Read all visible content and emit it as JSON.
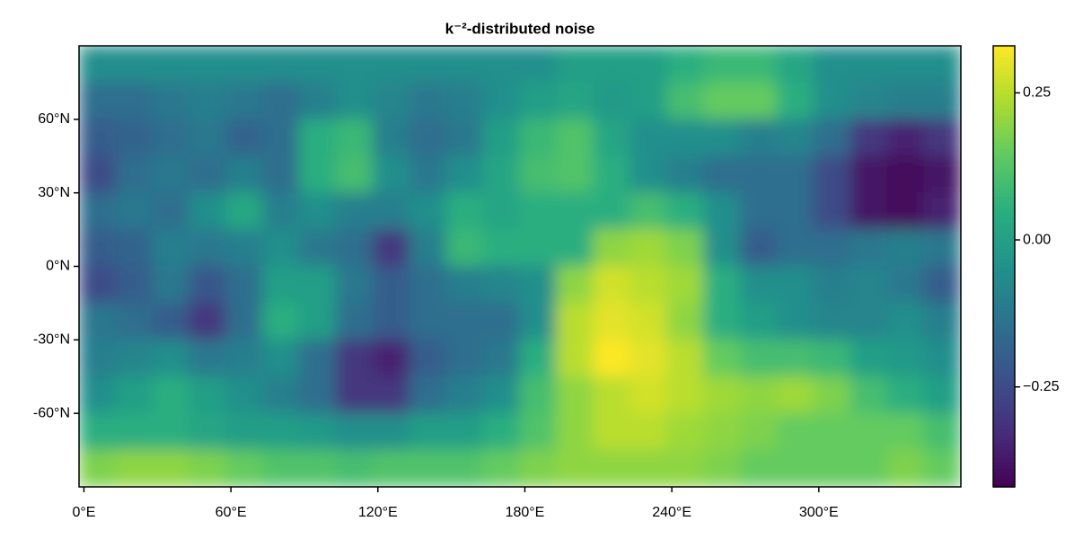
{
  "chart_data": {
    "type": "heatmap",
    "title": "k⁻²-distributed noise",
    "colormap": "viridis",
    "x": [
      5.5,
      20.5,
      35.5,
      50.5,
      65.5,
      80.5,
      95.5,
      110.5,
      125.5,
      140.5,
      155.5,
      170.5,
      185.5,
      200.5,
      215.5,
      230.5,
      245.5,
      260.5,
      275.5,
      290.5,
      305.5,
      320.5,
      335.5,
      350.5
    ],
    "y": [
      82.5,
      67.5,
      52.5,
      37.5,
      22.5,
      7.5,
      -7.5,
      -22.5,
      -37.5,
      -52.5,
      -67.5,
      -82.5
    ],
    "z": [
      [
        -0.05,
        -0.05,
        -0.05,
        -0.05,
        -0.05,
        -0.05,
        -0.05,
        -0.05,
        -0.05,
        -0.05,
        -0.05,
        -0.05,
        -0.05,
        0,
        0,
        0,
        0.05,
        0.08,
        0.08,
        0.02,
        -0.05,
        -0.05,
        -0.05,
        -0.05
      ],
      [
        -0.15,
        -0.15,
        -0.12,
        -0.1,
        -0.12,
        -0.15,
        -0.1,
        -0.05,
        -0.08,
        -0.12,
        -0.1,
        -0.05,
        0,
        0.02,
        -0.02,
        0,
        0.1,
        0.15,
        0.15,
        0.05,
        -0.05,
        -0.08,
        -0.1,
        -0.1
      ],
      [
        -0.2,
        -0.18,
        -0.15,
        -0.12,
        -0.18,
        -0.15,
        0.05,
        0.08,
        -0.1,
        -0.15,
        -0.12,
        0,
        0.08,
        0.12,
        0.02,
        -0.05,
        -0.05,
        -0.05,
        -0.1,
        -0.08,
        -0.15,
        -0.3,
        -0.35,
        -0.3
      ],
      [
        -0.25,
        -0.15,
        -0.12,
        -0.15,
        -0.1,
        -0.15,
        0.05,
        0.1,
        -0.05,
        -0.12,
        -0.05,
        0.02,
        0.1,
        0.12,
        0.05,
        -0.05,
        -0.1,
        -0.15,
        -0.15,
        -0.15,
        -0.25,
        -0.38,
        -0.4,
        -0.38
      ],
      [
        -0.15,
        -0.12,
        -0.15,
        -0.05,
        0.03,
        -0.1,
        -0.05,
        -0.1,
        -0.1,
        -0.05,
        0.05,
        0.02,
        0.05,
        0.05,
        0.05,
        0.1,
        0.05,
        -0.05,
        -0.15,
        -0.15,
        -0.25,
        -0.38,
        -0.4,
        -0.35
      ],
      [
        -0.2,
        -0.18,
        -0.1,
        -0.12,
        -0.1,
        -0.05,
        -0.12,
        -0.15,
        -0.3,
        -0.1,
        0.08,
        0.05,
        0.05,
        0.05,
        0.2,
        0.22,
        0.18,
        -0.05,
        -0.2,
        -0.15,
        -0.15,
        -0.12,
        -0.1,
        -0.12
      ],
      [
        -0.25,
        -0.2,
        -0.12,
        -0.22,
        -0.15,
        0,
        0,
        -0.12,
        -0.2,
        -0.15,
        -0.1,
        -0.08,
        -0.05,
        0.2,
        0.28,
        0.25,
        0.22,
        0.05,
        -0.05,
        -0.05,
        -0.1,
        -0.08,
        -0.12,
        -0.2
      ],
      [
        -0.12,
        -0.15,
        -0.2,
        -0.3,
        -0.15,
        0.05,
        0,
        -0.15,
        -0.2,
        -0.15,
        -0.15,
        -0.15,
        -0.05,
        0.25,
        0.3,
        0.28,
        0.2,
        0.05,
        0,
        -0.05,
        -0.08,
        -0.08,
        -0.05,
        -0.1
      ],
      [
        -0.1,
        -0.08,
        -0.05,
        -0.12,
        -0.1,
        -0.05,
        -0.15,
        -0.3,
        -0.35,
        -0.2,
        -0.15,
        -0.12,
        0.05,
        0.25,
        0.33,
        0.3,
        0.25,
        0.15,
        0.1,
        0.1,
        0.08,
        0,
        -0.02,
        -0.05
      ],
      [
        -0.05,
        0,
        0.05,
        0,
        -0.05,
        -0.1,
        -0.15,
        -0.3,
        -0.3,
        -0.15,
        -0.1,
        -0.05,
        0.1,
        0.2,
        0.25,
        0.28,
        0.25,
        0.22,
        0.2,
        0.22,
        0.18,
        0.1,
        0.05,
        0
      ],
      [
        0.05,
        0.05,
        0.05,
        0.02,
        0,
        0,
        -0.02,
        -0.05,
        -0.05,
        0,
        0,
        0.05,
        0.12,
        0.2,
        0.25,
        0.25,
        0.22,
        0.2,
        0.18,
        0.15,
        0.15,
        0.15,
        0.15,
        0.1
      ],
      [
        0.18,
        0.2,
        0.2,
        0.18,
        0.15,
        0.12,
        0.12,
        0.1,
        0.12,
        0.12,
        0.12,
        0.15,
        0.18,
        0.2,
        0.2,
        0.2,
        0.2,
        0.18,
        0.15,
        0.15,
        0.15,
        0.15,
        0.18,
        0.15
      ]
    ],
    "xlim": [
      -2,
      358
    ],
    "ylim": [
      -90,
      90
    ],
    "xticks": [
      {
        "value": 0,
        "label": "0°E"
      },
      {
        "value": 60,
        "label": "60°E"
      },
      {
        "value": 120,
        "label": "120°E"
      },
      {
        "value": 180,
        "label": "180°E"
      },
      {
        "value": 240,
        "label": "240°E"
      },
      {
        "value": 300,
        "label": "300°E"
      }
    ],
    "yticks": [
      {
        "value": 60,
        "label": "60°N"
      },
      {
        "value": 30,
        "label": "30°N"
      },
      {
        "value": 0,
        "label": "0°N"
      },
      {
        "value": -30,
        "label": "-30°N"
      },
      {
        "value": -60,
        "label": "-60°N"
      }
    ],
    "clim": [
      -0.42,
      0.33
    ],
    "cticks": [
      {
        "value": -0.25,
        "label": "−0.25"
      },
      {
        "value": 0,
        "label": "0.00"
      },
      0.25
    ]
  }
}
